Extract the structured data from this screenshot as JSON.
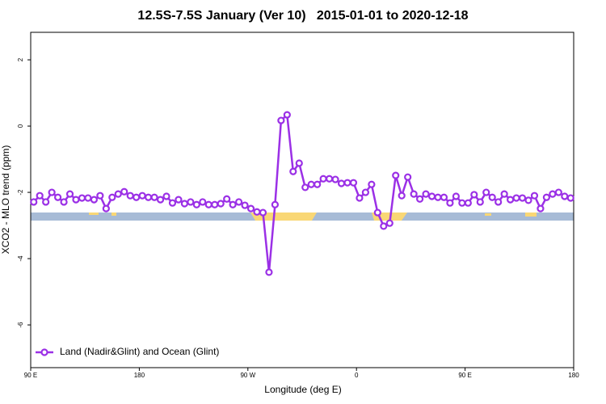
{
  "chart_data": {
    "type": "line",
    "title": "12.5S-7.5S January (Ver 10)   2015-01-01 to 2020-12-18",
    "x_label": "Longitude (deg E)",
    "y_label": "XCO2 - MLO trend (ppm)",
    "xlim": [
      90,
      540
    ],
    "ylim": [
      -7.29,
      2.83
    ],
    "xticks": [
      {
        "value": 90,
        "label": "90 E"
      },
      {
        "value": 180,
        "label": "180"
      },
      {
        "value": 270,
        "label": "90 W"
      },
      {
        "value": 360,
        "label": "0"
      },
      {
        "value": 450,
        "label": "90 E"
      },
      {
        "value": 540,
        "label": "180"
      }
    ],
    "yticks": [
      2,
      0,
      -2,
      -4,
      -6
    ],
    "legend_position": "bottom-left",
    "x": [
      92.5,
      97.5,
      102.5,
      107.5,
      112.5,
      117.5,
      122.5,
      127.5,
      132.5,
      137.5,
      142.5,
      147.5,
      152.5,
      157.5,
      162.5,
      167.5,
      172.5,
      177.5,
      182.5,
      187.5,
      192.5,
      197.5,
      202.5,
      207.5,
      212.5,
      217.5,
      222.5,
      227.5,
      232.5,
      237.5,
      242.5,
      247.5,
      252.5,
      257.5,
      262.5,
      267.5,
      272.5,
      277.5,
      282.5,
      287.5,
      292.5,
      297.5,
      302.5,
      307.5,
      312.5,
      317.5,
      322.5,
      327.5,
      332.5,
      337.5,
      342.5,
      347.5,
      352.5,
      357.5,
      362.5,
      367.5,
      372.5,
      377.5,
      382.5,
      387.5,
      392.5,
      397.5,
      402.5,
      407.5,
      412.5,
      417.5,
      422.5,
      427.5,
      432.5,
      437.5,
      442.5,
      447.5,
      452.5,
      457.5,
      462.5,
      467.5,
      472.5,
      477.5,
      482.5,
      487.5,
      492.5,
      497.5,
      502.5,
      507.5,
      512.5,
      517.5,
      522.5,
      527.5,
      532.5,
      537.5
    ],
    "series": [
      {
        "name": "Land (Nadir&Glint) and Ocean (Glint)",
        "color": "#9b30e6",
        "values": [
          -2.29,
          -2.1,
          -2.29,
          -2.0,
          -2.15,
          -2.29,
          -2.05,
          -2.22,
          -2.17,
          -2.17,
          -2.22,
          -2.1,
          -2.49,
          -2.15,
          -2.05,
          -1.98,
          -2.1,
          -2.15,
          -2.1,
          -2.15,
          -2.15,
          -2.22,
          -2.12,
          -2.32,
          -2.22,
          -2.34,
          -2.29,
          -2.37,
          -2.29,
          -2.37,
          -2.37,
          -2.34,
          -2.2,
          -2.37,
          -2.29,
          -2.39,
          -2.49,
          -2.59,
          -2.61,
          -4.41,
          -2.37,
          0.17,
          0.34,
          -1.37,
          -1.12,
          -1.85,
          -1.76,
          -1.76,
          -1.59,
          -1.59,
          -1.61,
          -1.73,
          -1.71,
          -1.71,
          -2.17,
          -2.0,
          -1.76,
          -2.61,
          -3.02,
          -2.93,
          -1.49,
          -2.1,
          -1.54,
          -2.05,
          -2.2,
          -2.05,
          -2.12,
          -2.15,
          -2.15,
          -2.32,
          -2.12,
          -2.32,
          -2.32,
          -2.07,
          -2.29,
          -2.0,
          -2.15,
          -2.29,
          -2.05,
          -2.22,
          -2.17,
          -2.17,
          -2.24,
          -2.1,
          -2.49,
          -2.15,
          -2.05,
          -2.0,
          -2.12,
          -2.17
        ]
      }
    ]
  }
}
